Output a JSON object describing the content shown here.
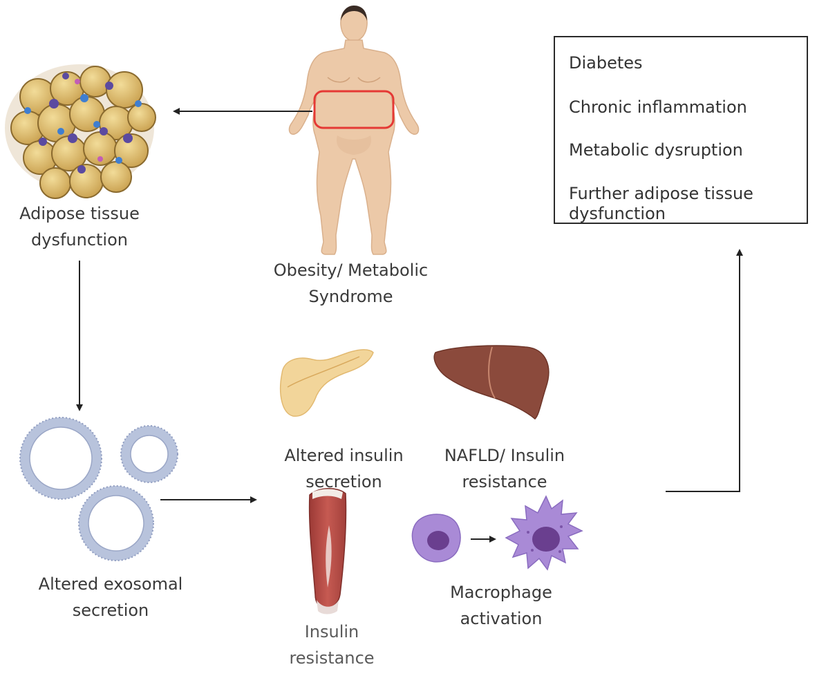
{
  "labels": {
    "adipose": [
      "Adipose tissue",
      "dysfunction"
    ],
    "obesity": [
      "Obesity/ Metabolic",
      "Syndrome"
    ],
    "exosomal": [
      "Altered exosomal",
      "secretion"
    ],
    "pancreas": [
      "Altered insulin",
      "secretion"
    ],
    "liver": [
      "NAFLD/ Insulin",
      "resistance"
    ],
    "muscle": [
      "Insulin",
      "resistance"
    ],
    "macrophage": [
      "Macrophage",
      "activation"
    ]
  },
  "outcomes": [
    "Diabetes",
    "Chronic inflammation",
    "Metabolic dysruption",
    "Further adipose tissue",
    "dysfunction"
  ],
  "colors": {
    "skin": "#ecc9a8",
    "fat_cell": "#dfbe6a",
    "liver": "#8b4a3c",
    "pancreas": "#f2d59a",
    "muscle": "#b84a44",
    "macrophage": "#a98ad6",
    "highlight": "#e53935",
    "vesicle": "#c9d3e6"
  }
}
